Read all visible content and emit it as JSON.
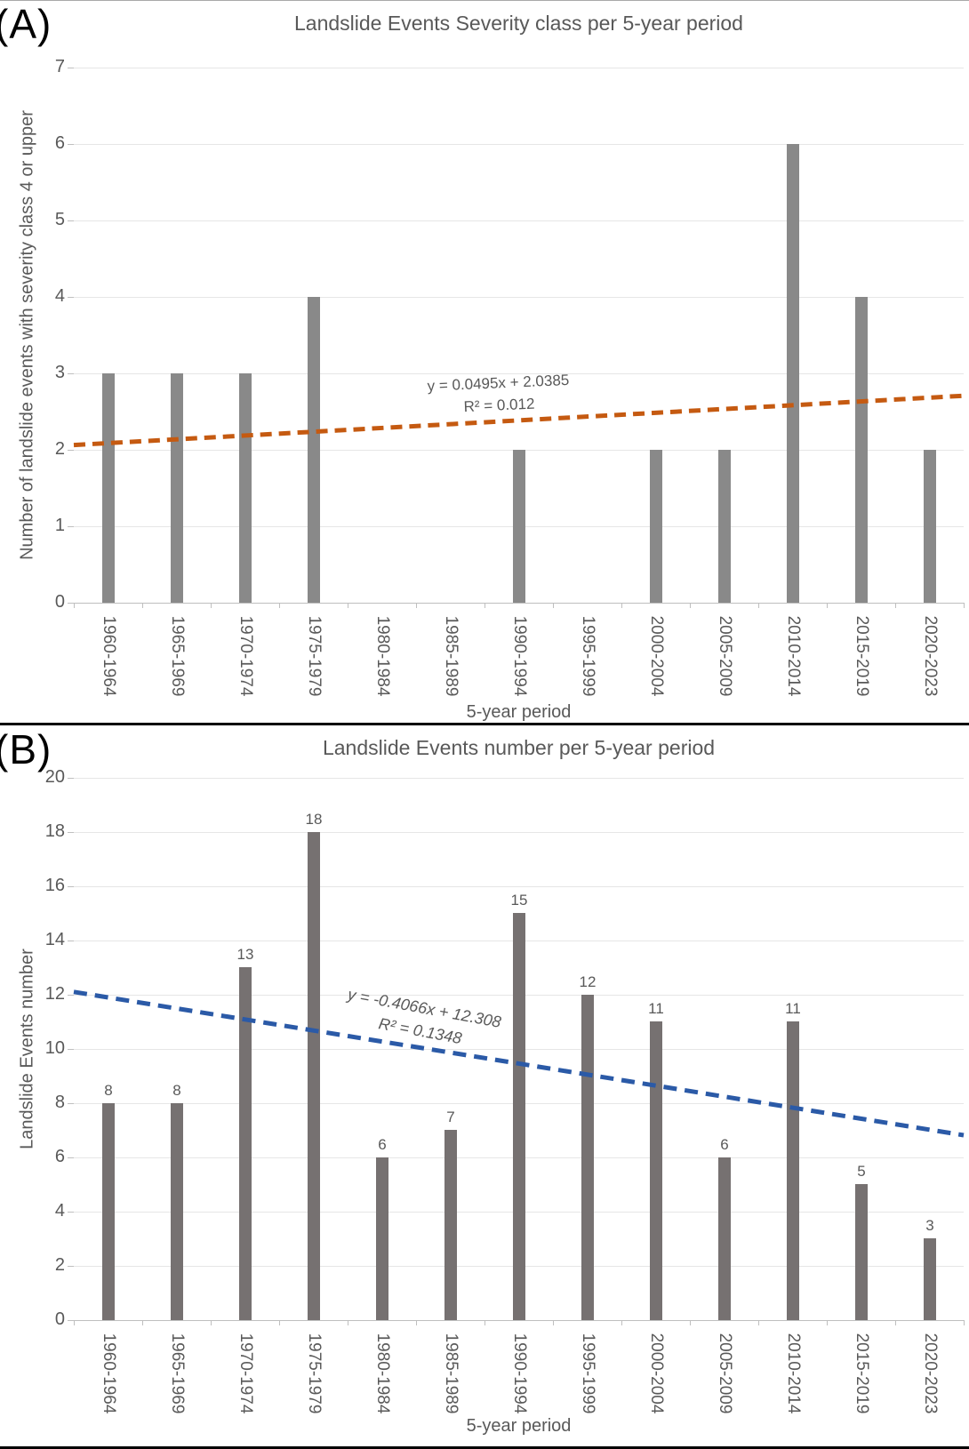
{
  "chart_data": [
    {
      "panel_label": "(A)",
      "type": "bar",
      "title": "Landslide Events Severity class per 5-year period",
      "xlabel": "5-year period",
      "ylabel": "Number of landslide events with severity class 4 or upper",
      "categories": [
        "1960-1964",
        "1965-1969",
        "1970-1974",
        "1975-1979",
        "1980-1984",
        "1985-1989",
        "1990-1994",
        "1995-1999",
        "2000-2004",
        "2005-2009",
        "2010-2014",
        "2015-2019",
        "2020-2023"
      ],
      "values": [
        3,
        3,
        3,
        4,
        0,
        0,
        2,
        0,
        2,
        2,
        6,
        4,
        2
      ],
      "ylim": [
        0,
        7
      ],
      "ytick_step": 1,
      "grid": true,
      "legend": "none",
      "bar_color": "#898989",
      "show_data_labels": false,
      "trendline": {
        "type": "linear",
        "slope": 0.0495,
        "intercept": 2.0385,
        "r_squared": 0.012,
        "equation_label": "y = 0.0495x + 2.0385",
        "r2_label": "R² = 0.012",
        "color": "#C55A11",
        "style": "dashed"
      }
    },
    {
      "panel_label": "(B)",
      "type": "bar",
      "title": "Landslide Events number per 5-year period",
      "xlabel": "5-year period",
      "ylabel": "Landslide Events number",
      "categories": [
        "1960-1964",
        "1965-1969",
        "1970-1974",
        "1975-1979",
        "1980-1984",
        "1985-1989",
        "1990-1994",
        "1995-1999",
        "2000-2004",
        "2005-2009",
        "2010-2014",
        "2015-2019",
        "2020-2023"
      ],
      "values": [
        8,
        8,
        13,
        18,
        6,
        7,
        15,
        12,
        11,
        6,
        11,
        5,
        3
      ],
      "ylim": [
        0,
        20
      ],
      "ytick_step": 2,
      "grid": true,
      "legend": "none",
      "bar_color": "#767171",
      "show_data_labels": true,
      "trendline": {
        "type": "linear",
        "slope": -0.4066,
        "intercept": 12.308,
        "r_squared": 0.1348,
        "equation_label": "y = -0.4066x + 12.308",
        "r2_label": "R² = 0.1348",
        "color": "#2B5AA7",
        "style": "dashed"
      }
    }
  ]
}
